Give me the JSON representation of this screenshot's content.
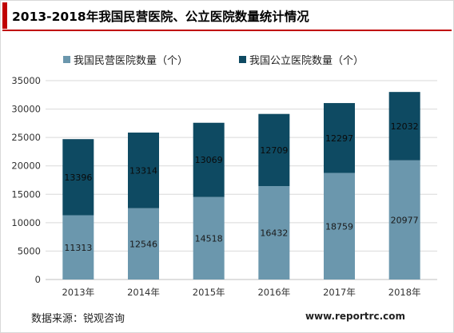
{
  "title": "2013-2018年我国民营医院、公立医院数量统计情况",
  "source": "数据来源：锐观咨询",
  "website": "www.reportrc.com",
  "colors": {
    "accent": "#c00000",
    "private": "#6b97ad",
    "public": "#0e4a62"
  },
  "chart_data": {
    "type": "bar",
    "stacked": true,
    "categories": [
      "2013年",
      "2014年",
      "2015年",
      "2016年",
      "2017年",
      "2018年"
    ],
    "series": [
      {
        "name": "我国民营医院数量（个）",
        "values": [
          11313,
          12546,
          14518,
          16432,
          18759,
          20977
        ]
      },
      {
        "name": "我国公立医院数量（个）",
        "values": [
          13396,
          13314,
          13069,
          12709,
          12297,
          12032
        ]
      }
    ],
    "ylim": [
      0,
      35000
    ],
    "yticks": [
      0,
      5000,
      10000,
      15000,
      20000,
      25000,
      30000,
      35000
    ],
    "grid": true,
    "legend": "top"
  }
}
